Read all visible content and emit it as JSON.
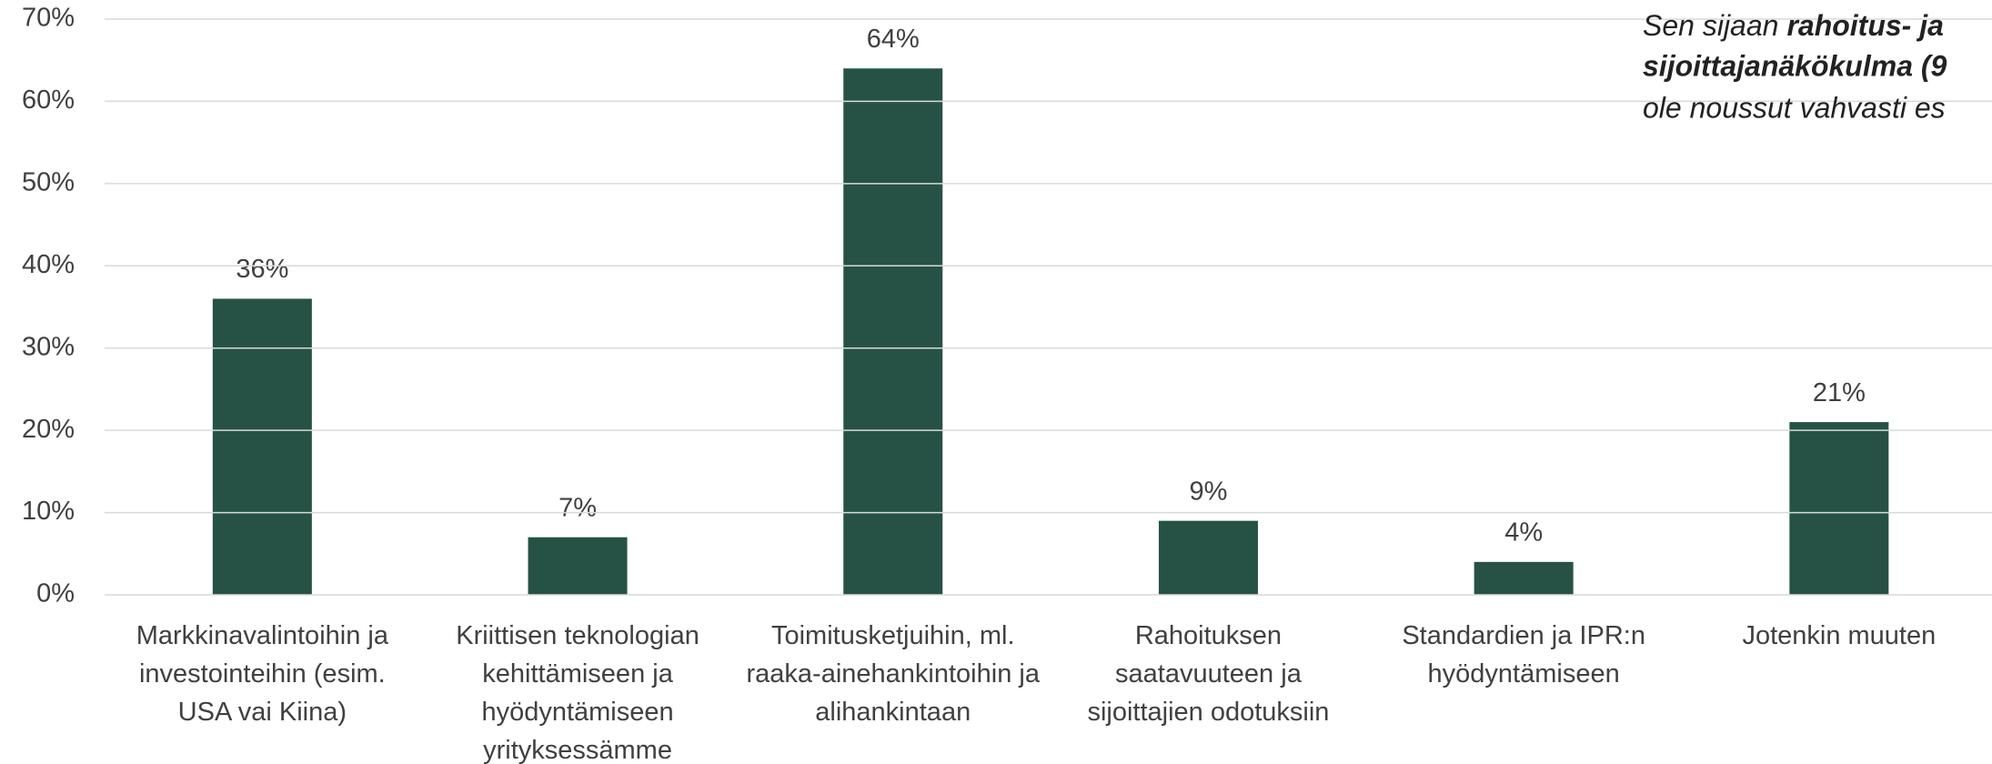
{
  "chart_data": {
    "type": "bar",
    "categories": [
      "Markkinavalintoihin ja investointeihin (esim. USA vai Kiina)",
      "Kriittisen teknologian kehittämiseen ja hyödyntämiseen yrityksessämme",
      "Toimitusketjuihin, ml. raaka-ainehankintoihin ja alihankintaan",
      "Rahoituksen saatavuuteen ja sijoittajien odotuksiin",
      "Standardien ja IPR:n hyödyntämiseen",
      "Jotenkin muuten"
    ],
    "values": [
      36,
      7,
      64,
      9,
      4,
      21
    ],
    "value_labels": [
      "36%",
      "7%",
      "64%",
      "9%",
      "4%",
      "21%"
    ],
    "color": "#265245",
    "ylim": [
      0,
      70
    ],
    "yticks": [
      {
        "value": 0,
        "label": "0%"
      },
      {
        "value": 10,
        "label": "10%"
      },
      {
        "value": 20,
        "label": "20%"
      },
      {
        "value": 30,
        "label": "30%"
      },
      {
        "value": 40,
        "label": "40%"
      },
      {
        "value": 50,
        "label": "50%"
      },
      {
        "value": 60,
        "label": "60%"
      },
      {
        "value": 70,
        "label": "70%"
      }
    ],
    "grid": true,
    "annotation": [
      [
        "Sen sijaan",
        "rahoitus- ja"
      ],
      [
        "sijoittajanäkökulma (9"
      ],
      [
        "ole noussut vahvasti es"
      ]
    ]
  }
}
